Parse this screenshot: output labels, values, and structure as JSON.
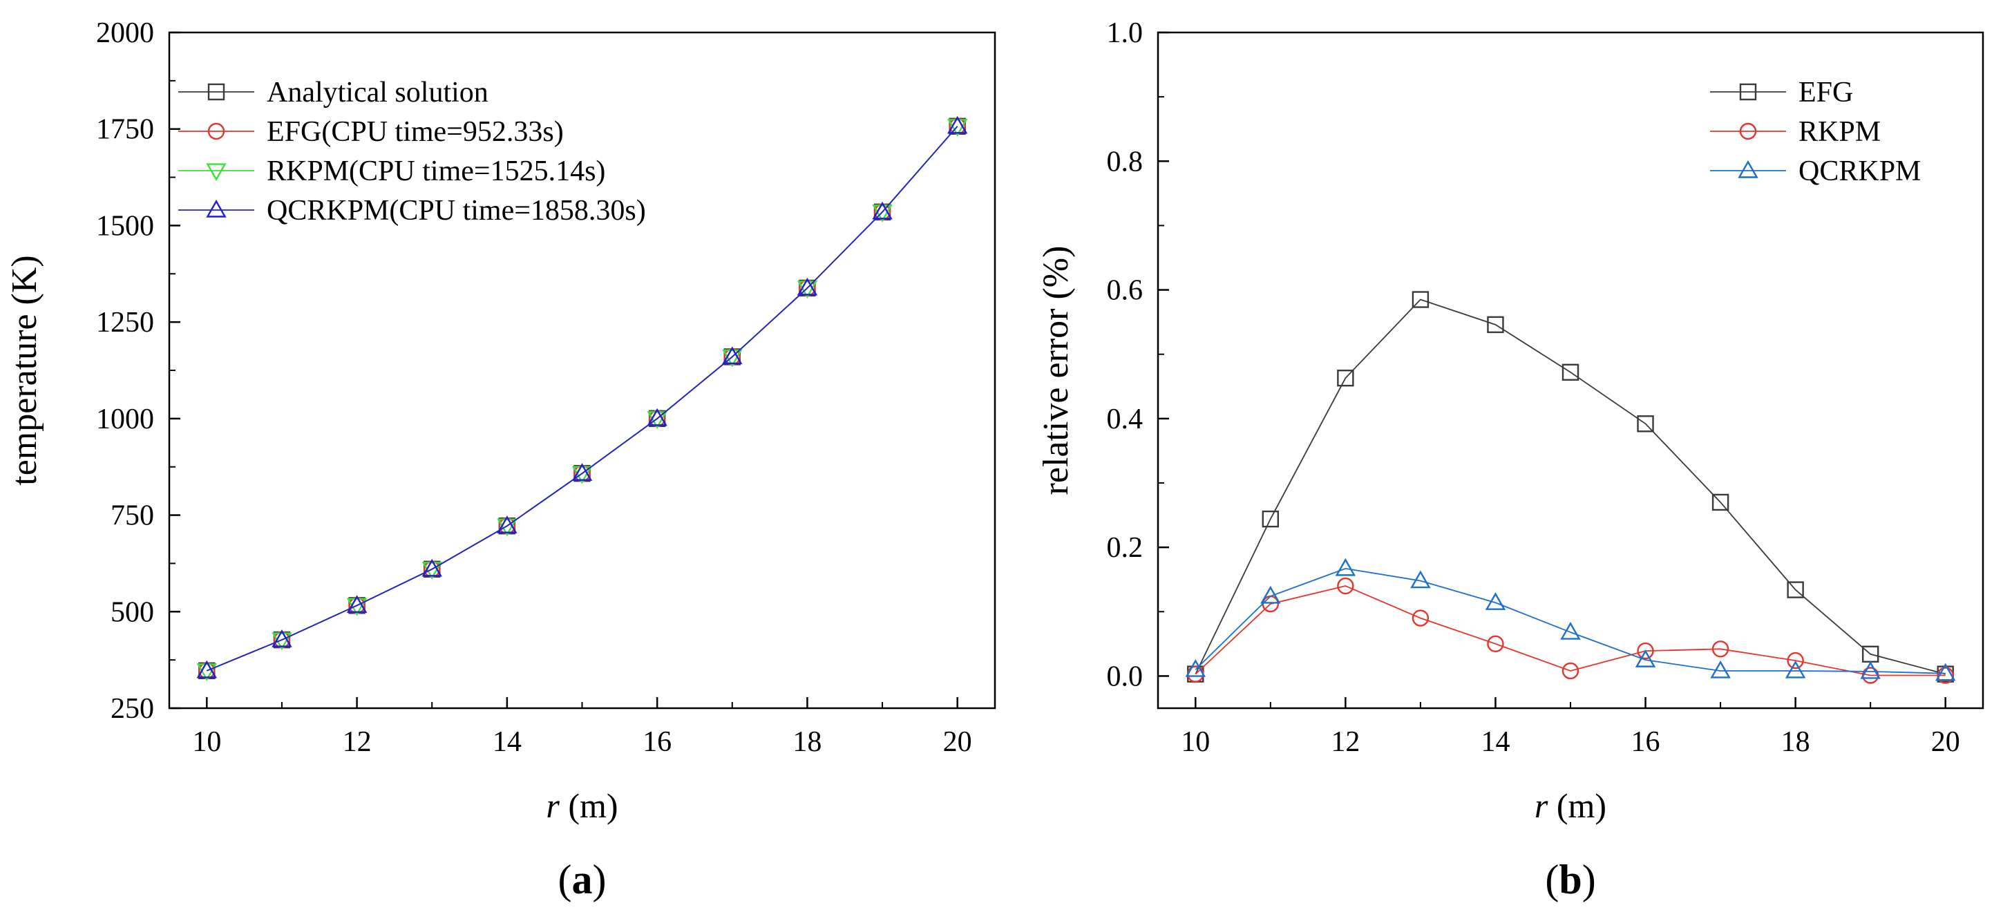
{
  "chart_data": [
    {
      "type": "line",
      "panel_label": "(a)",
      "xlabel_italic": "r",
      "xlabel_unit": " (m)",
      "ylabel": "temperature (K)",
      "xlim": [
        9.5,
        20.5
      ],
      "ylim": [
        250,
        2000
      ],
      "xticks": [
        10,
        12,
        14,
        16,
        18,
        20
      ],
      "yticks": [
        250,
        500,
        750,
        1000,
        1250,
        1500,
        1750,
        2000
      ],
      "legend_position": "top-left",
      "x": [
        10,
        11,
        12,
        13,
        14,
        15,
        16,
        17,
        18,
        19,
        20
      ],
      "series": [
        {
          "name": "Analytical solution",
          "marker": "square",
          "color": "#3a3a3a",
          "values": [
            347,
            427,
            516,
            610,
            722,
            858,
            1000,
            1160,
            1338,
            1535,
            1757
          ]
        },
        {
          "name": "EFG(CPU time=952.33s)",
          "marker": "circle",
          "color": "#e8332a",
          "values": [
            347,
            427,
            516,
            610,
            722,
            858,
            1000,
            1160,
            1338,
            1535,
            1757
          ]
        },
        {
          "name": "RKPM(CPU time=1525.14s)",
          "marker": "triangle-down",
          "color": "#3ee03a",
          "values": [
            347,
            427,
            516,
            610,
            722,
            858,
            1000,
            1160,
            1338,
            1535,
            1757
          ]
        },
        {
          "name": "QCRKPM(CPU time=1858.30s)",
          "marker": "triangle-up",
          "color": "#2020d0",
          "values": [
            347,
            427,
            516,
            610,
            722,
            858,
            1000,
            1160,
            1338,
            1535,
            1757
          ]
        }
      ]
    },
    {
      "type": "line",
      "panel_label": "(b)",
      "xlabel_italic": "r",
      "xlabel_unit": " (m)",
      "ylabel": "relative error (%)",
      "xlim": [
        9.5,
        20.5
      ],
      "ylim": [
        -0.05,
        1.0
      ],
      "xticks": [
        10,
        12,
        14,
        16,
        18,
        20
      ],
      "yticks": [
        0.0,
        0.2,
        0.4,
        0.6,
        0.8,
        1.0
      ],
      "ytick_labels": [
        "0.0",
        "0.2",
        "0.4",
        "0.6",
        "0.8",
        "1.0"
      ],
      "legend_position": "top-right",
      "x": [
        10,
        11,
        12,
        13,
        14,
        15,
        16,
        17,
        18,
        19,
        20
      ],
      "series": [
        {
          "name": "EFG",
          "marker": "square",
          "color": "#3a3a3a",
          "values": [
            0.003,
            0.244,
            0.463,
            0.585,
            0.546,
            0.472,
            0.392,
            0.27,
            0.134,
            0.034,
            0.003
          ]
        },
        {
          "name": "RKPM",
          "marker": "circle",
          "color": "#e8332a",
          "values": [
            0.003,
            0.112,
            0.14,
            0.09,
            0.05,
            0.008,
            0.039,
            0.042,
            0.024,
            0.001,
            0.001
          ]
        },
        {
          "name": "QCRKPM",
          "marker": "triangle-up",
          "color": "#1a6fd0",
          "values": [
            0.01,
            0.124,
            0.167,
            0.148,
            0.114,
            0.068,
            0.025,
            0.008,
            0.008,
            0.007,
            0.004
          ]
        }
      ]
    }
  ]
}
